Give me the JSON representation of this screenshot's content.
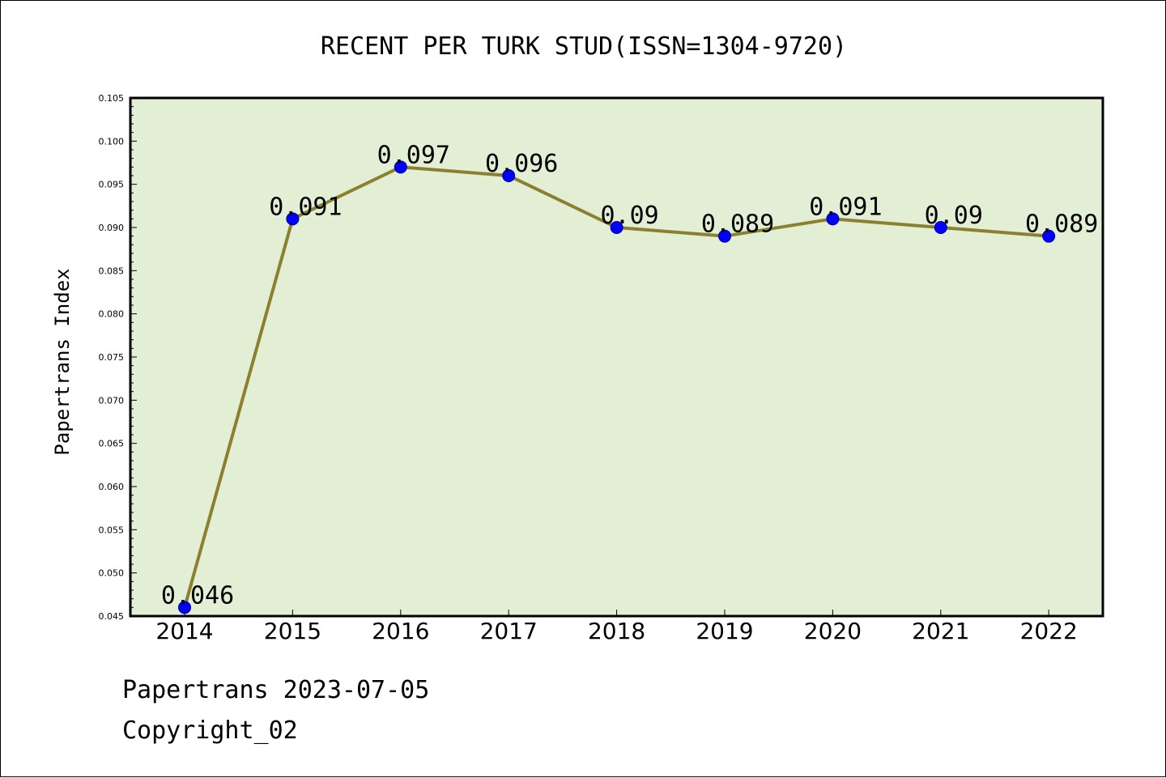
{
  "chart_data": {
    "type": "line",
    "title": "RECENT PER TURK STUD(ISSN=1304-9720)",
    "xlabel": "",
    "ylabel": "Papertrans Index",
    "x": [
      "2014",
      "2015",
      "2016",
      "2017",
      "2018",
      "2019",
      "2020",
      "2021",
      "2022"
    ],
    "series": [
      {
        "values": [
          0.046,
          0.091,
          0.097,
          0.096,
          0.09,
          0.089,
          0.091,
          0.09,
          0.089
        ],
        "data_labels": [
          "0.046",
          "0.091",
          "0.097",
          "0.096",
          "0.09",
          "0.089",
          "0.091",
          "0.09",
          "0.089"
        ]
      }
    ],
    "ylim": [
      0.045,
      0.105
    ],
    "yticks": [
      "0.045",
      "0.050",
      "0.055",
      "0.060",
      "0.065",
      "0.070",
      "0.075",
      "0.080",
      "0.085",
      "0.090",
      "0.095",
      "0.100",
      "0.105"
    ],
    "grid": false,
    "legend": "none",
    "colors": {
      "plot_background": "#e2efd5",
      "line": "#8b8030",
      "marker": "#0000ff",
      "marker_edge": "#00008b"
    }
  },
  "footer": {
    "source": "Papertrans 2023-07-05",
    "copyright": "Copyright_02"
  }
}
